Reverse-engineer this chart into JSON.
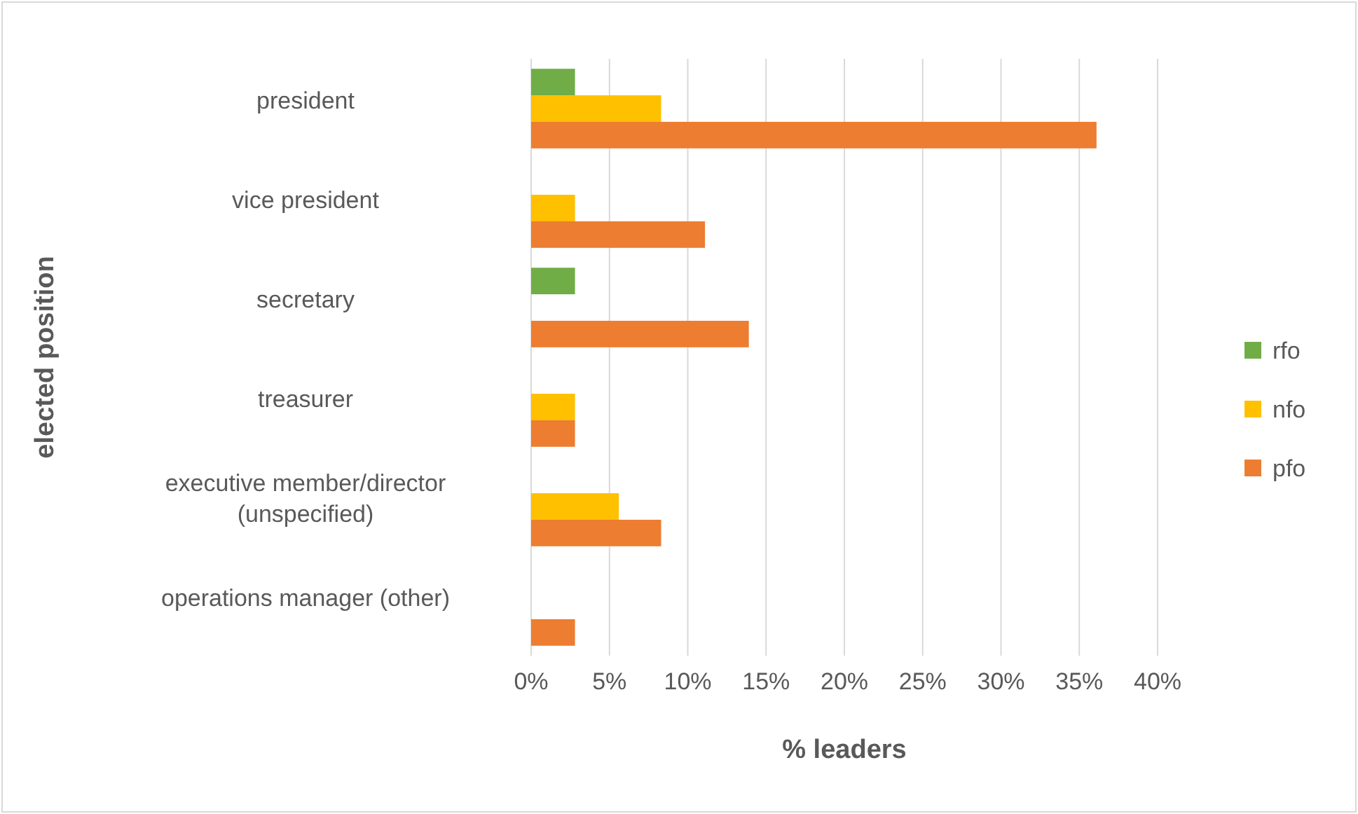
{
  "chart_data": {
    "type": "bar",
    "orientation": "horizontal",
    "categories": [
      "president",
      "vice president",
      "secretary",
      "treasurer",
      "executive member/director (unspecified)",
      "operations manager (other)"
    ],
    "series": [
      {
        "name": "rfo",
        "color": "#70ad47",
        "values": [
          2.8,
          null,
          2.8,
          null,
          null,
          null
        ]
      },
      {
        "name": "nfo",
        "color": "#ffc000",
        "values": [
          8.3,
          2.8,
          null,
          2.8,
          5.6,
          null
        ]
      },
      {
        "name": "pfo",
        "color": "#ed7d31",
        "values": [
          36.1,
          11.1,
          13.9,
          2.8,
          8.3,
          2.8
        ]
      }
    ],
    "xlim": [
      0,
      40
    ],
    "xticks": [
      {
        "value": 0,
        "label": "0%"
      },
      {
        "value": 5,
        "label": "5%"
      },
      {
        "value": 10,
        "label": "10%"
      },
      {
        "value": 15,
        "label": "15%"
      },
      {
        "value": 20,
        "label": "20%"
      },
      {
        "value": 25,
        "label": "25%"
      },
      {
        "value": 30,
        "label": "30%"
      },
      {
        "value": 35,
        "label": "35%"
      },
      {
        "value": 40,
        "label": "40%"
      }
    ],
    "xlabel": "% leaders",
    "ylabel": "elected position",
    "grid": "x",
    "legend": "right"
  }
}
